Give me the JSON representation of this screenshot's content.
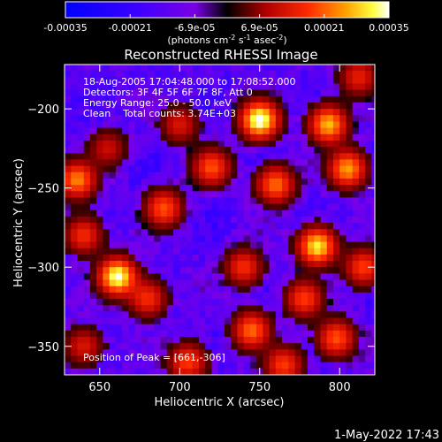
{
  "chart_data": {
    "type": "heatmap",
    "title": "Reconstructed RHESSI Image",
    "xlabel": "Heliocentric X (arcsec)",
    "ylabel": "Heliocentric Y (arcsec)",
    "xlim": [
      628,
      822
    ],
    "ylim": [
      -368,
      -172
    ],
    "xticks": [
      650,
      700,
      750,
      800
    ],
    "yticks": [
      -200,
      -250,
      -300,
      -350
    ],
    "colorbar": {
      "min": -0.00035,
      "max": 0.00035,
      "ticks": [
        "-0.00035",
        "-0.00021",
        "-6.9e-05",
        "6.9e-05",
        "0.00021",
        "0.00035"
      ],
      "label": "(photons cm-2 s-1 asec-2)",
      "label_text": "(photons cm",
      "label_exp1": "-2",
      "label_mid": " s",
      "label_exp2": "-1",
      "label_end": " asec",
      "label_exp3": "-2",
      "label_close": ")",
      "colormap": "RHESSI (blue-purple-red-yellow-white)"
    },
    "annotations": [
      "18-Aug-2005 17:04:48.000 to 17:08:52.000",
      "Detectors: 3F 4F 5F 6F 7F 8F, Att 0",
      "Energy Range: 25.0 - 50.0 keV",
      "Clean    Total counts: 3.74E+03"
    ],
    "peak_label": "Position of Peak = [661,-306]",
    "peak": [
      661,
      -306
    ],
    "timestamp": "1-May-2022 17:43",
    "sources": [
      {
        "x": 750,
        "y": -207,
        "amp": 1.0
      },
      {
        "x": 661,
        "y": -306,
        "amp": 0.95
      },
      {
        "x": 786,
        "y": -287,
        "amp": 0.85
      },
      {
        "x": 793,
        "y": -210,
        "amp": 0.75
      },
      {
        "x": 805,
        "y": -238,
        "amp": 0.7
      },
      {
        "x": 636,
        "y": -245,
        "amp": 0.65
      },
      {
        "x": 690,
        "y": -263,
        "amp": 0.55
      },
      {
        "x": 720,
        "y": -237,
        "amp": 0.55
      },
      {
        "x": 760,
        "y": -248,
        "amp": 0.6
      },
      {
        "x": 745,
        "y": -340,
        "amp": 0.6
      },
      {
        "x": 798,
        "y": -345,
        "amp": 0.55
      },
      {
        "x": 778,
        "y": -320,
        "amp": 0.5
      },
      {
        "x": 740,
        "y": -300,
        "amp": 0.45
      },
      {
        "x": 705,
        "y": -360,
        "amp": 0.5
      },
      {
        "x": 765,
        "y": -362,
        "amp": 0.5
      },
      {
        "x": 815,
        "y": -300,
        "amp": 0.5
      },
      {
        "x": 680,
        "y": -320,
        "amp": 0.45
      },
      {
        "x": 640,
        "y": -280,
        "amp": 0.45
      },
      {
        "x": 700,
        "y": -210,
        "amp": 0.35
      },
      {
        "x": 640,
        "y": -350,
        "amp": 0.35
      },
      {
        "x": 812,
        "y": -180,
        "amp": 0.4
      },
      {
        "x": 655,
        "y": -225,
        "amp": 0.3
      }
    ]
  }
}
